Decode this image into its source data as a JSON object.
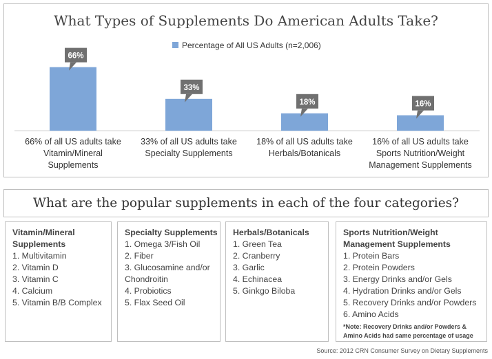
{
  "chart_data": {
    "type": "bar",
    "title": "What Types of Supplements Do American Adults Take?",
    "legend": "Percentage of All US Adults (n=2,006)",
    "categories": [
      "66% of all US adults take Vitamin/Mineral Supplements",
      "33% of all US adults take Specialty Supplements",
      "18% of all US adults take Herbals/Botanicals",
      "16% of all US adults take Sports Nutrition/Weight Management Supplements"
    ],
    "category_lines": [
      [
        "66% of all US adults take",
        "Vitamin/Mineral",
        "Supplements"
      ],
      [
        "33% of all US adults take",
        "Specialty Supplements"
      ],
      [
        "18% of all US adults take",
        "Herbals/Botanicals"
      ],
      [
        "16% of all US adults take",
        "Sports Nutrition/Weight",
        "Management Supplements"
      ]
    ],
    "values": [
      66,
      33,
      18,
      16
    ],
    "data_labels": [
      "66%",
      "33%",
      "18%",
      "16%"
    ],
    "ylim": [
      0,
      100
    ],
    "xlabel": "",
    "ylabel": "",
    "colors": {
      "bar": "#7ea6d8",
      "callout": "#707070",
      "callout_text": "#ffffff"
    }
  },
  "categories_section": {
    "title": "What are the popular supplements in each of the four categories?",
    "boxes": [
      {
        "heading": [
          "Vitamin/Mineral",
          "Supplements"
        ],
        "items": [
          "1. Multivitamin",
          "2. Vitamin D",
          "3. Vitamin C",
          "4. Calcium",
          "5. Vitamin B/B Complex"
        ]
      },
      {
        "heading": [
          "Specialty Supplements"
        ],
        "items": [
          "1. Omega 3/Fish Oil",
          "2. Fiber",
          "3. Glucosamine and/or",
          "Chondroitin",
          "4. Probiotics",
          "5. Flax Seed Oil"
        ]
      },
      {
        "heading": [
          "Herbals/Botanicals"
        ],
        "items": [
          "1. Green Tea",
          "2. Cranberry",
          "3. Garlic",
          "4. Echinacea",
          "5. Ginkgo Biloba"
        ]
      },
      {
        "heading": [
          "Sports Nutrition/Weight",
          "Management Supplements"
        ],
        "items": [
          "1. Protein Bars",
          "2. Protein Powders",
          "3. Energy Drinks and/or Gels",
          "4. Hydration Drinks and/or Gels",
          "5. Recovery Drinks and/or Powders",
          "6. Amino Acids"
        ],
        "note": [
          "*Note: Recovery Drinks and/or Powders &",
          "Amino Acids had same percentage of usage"
        ]
      }
    ]
  },
  "source": "Source: 2012 CRN Consumer Survey on Dietary Supplements"
}
